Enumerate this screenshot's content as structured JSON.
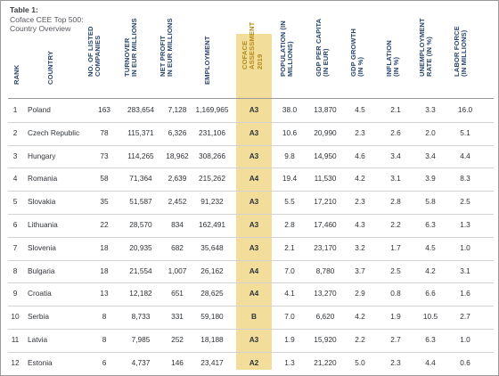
{
  "caption": {
    "title": "Table 1:",
    "line2": "Coface CEE Top 500:",
    "line3": "Country Overview"
  },
  "headers": {
    "rank": "RANK",
    "country": "COUNTRY",
    "listed": "NO. OF LISTED\nCOMPANIES",
    "turnover": "TURNOVER\nIN EUR MILLIONS",
    "profit": "NET PROFIT\nIN EUR MILLIONS",
    "employment": "EMPLOYMENT",
    "assessment": "COFACE\nASSESSMENT\n2019",
    "population": "POPULATION (IN\nMILLIONS)",
    "gdp_pc": "GDP PER CAPITA\n(IN EUR)",
    "gdp_growth": "GDP GROWTH\n(IN %)",
    "inflation": "INFLATION\n(IN %)",
    "unemployment": "UNEMPLOYMENT\nRATE (IN %)",
    "labor": "LABOR FORCE\n(IN MILLIONS)"
  },
  "colors": {
    "header_blue": "#2a466f",
    "header_gold": "#b48a1a",
    "assessment_band": "#f2dd9a"
  },
  "rows": [
    {
      "rank": "1",
      "country": "Poland",
      "listed": "163",
      "turnover": "283,654",
      "profit": "7,128",
      "employment": "1,169,965",
      "assessment": "A3",
      "population": "38.0",
      "gdp_pc": "13,870",
      "gdp_growth": "4.5",
      "inflation": "2.1",
      "unemployment": "3.3",
      "labor": "16.0"
    },
    {
      "rank": "2",
      "country": "Czech Republic",
      "listed": "78",
      "turnover": "115,371",
      "profit": "6,326",
      "employment": "231,106",
      "assessment": "A3",
      "population": "10.6",
      "gdp_pc": "20,990",
      "gdp_growth": "2.3",
      "inflation": "2.6",
      "unemployment": "2.0",
      "labor": "5.1"
    },
    {
      "rank": "3",
      "country": "Hungary",
      "listed": "73",
      "turnover": "114,265",
      "profit": "18,962",
      "employment": "308,266",
      "assessment": "A3",
      "population": "9.8",
      "gdp_pc": "14,950",
      "gdp_growth": "4.6",
      "inflation": "3.4",
      "unemployment": "3.4",
      "labor": "4.4"
    },
    {
      "rank": "4",
      "country": "Romania",
      "listed": "58",
      "turnover": "71,364",
      "profit": "2,639",
      "employment": "215,262",
      "assessment": "A4",
      "population": "19.4",
      "gdp_pc": "11,530",
      "gdp_growth": "4.2",
      "inflation": "3.1",
      "unemployment": "3.9",
      "labor": "8.3"
    },
    {
      "rank": "5",
      "country": "Slovakia",
      "listed": "35",
      "turnover": "51,587",
      "profit": "2,452",
      "employment": "91,232",
      "assessment": "A3",
      "population": "5.5",
      "gdp_pc": "17,210",
      "gdp_growth": "2.3",
      "inflation": "2.8",
      "unemployment": "5.8",
      "labor": "2.5"
    },
    {
      "rank": "6",
      "country": "Lithuania",
      "listed": "22",
      "turnover": "28,570",
      "profit": "834",
      "employment": "162,491",
      "assessment": "A3",
      "population": "2.8",
      "gdp_pc": "17,460",
      "gdp_growth": "4.3",
      "inflation": "2.2",
      "unemployment": "6.3",
      "labor": "1.3"
    },
    {
      "rank": "7",
      "country": "Slovenia",
      "listed": "18",
      "turnover": "20,935",
      "profit": "682",
      "employment": "35,648",
      "assessment": "A3",
      "population": "2.1",
      "gdp_pc": "23,170",
      "gdp_growth": "3.2",
      "inflation": "1.7",
      "unemployment": "4.5",
      "labor": "1.0"
    },
    {
      "rank": "8",
      "country": "Bulgaria",
      "listed": "18",
      "turnover": "21,554",
      "profit": "1,007",
      "employment": "26,162",
      "assessment": "A4",
      "population": "7.0",
      "gdp_pc": "8,780",
      "gdp_growth": "3.7",
      "inflation": "2.5",
      "unemployment": "4.2",
      "labor": "3.1"
    },
    {
      "rank": "9",
      "country": "Croatia",
      "listed": "13",
      "turnover": "12,182",
      "profit": "651",
      "employment": "28,625",
      "assessment": "A4",
      "population": "4.1",
      "gdp_pc": "13,270",
      "gdp_growth": "2.9",
      "inflation": "0.8",
      "unemployment": "6.6",
      "labor": "1.6"
    },
    {
      "rank": "10",
      "country": "Serbia",
      "listed": "8",
      "turnover": "8,733",
      "profit": "331",
      "employment": "59,180",
      "assessment": "B",
      "population": "7.0",
      "gdp_pc": "6,620",
      "gdp_growth": "4.2",
      "inflation": "1.9",
      "unemployment": "10.5",
      "labor": "2.7"
    },
    {
      "rank": "11",
      "country": "Latvia",
      "listed": "8",
      "turnover": "7,985",
      "profit": "252",
      "employment": "18,188",
      "assessment": "A3",
      "population": "1.9",
      "gdp_pc": "15,920",
      "gdp_growth": "2.2",
      "inflation": "2.7",
      "unemployment": "6.3",
      "labor": "1.0"
    },
    {
      "rank": "12",
      "country": "Estonia",
      "listed": "6",
      "turnover": "4,737",
      "profit": "146",
      "employment": "23,417",
      "assessment": "A2",
      "population": "1.3",
      "gdp_pc": "21,220",
      "gdp_growth": "5.0",
      "inflation": "2.3",
      "unemployment": "4.4",
      "labor": "0.6"
    }
  ]
}
